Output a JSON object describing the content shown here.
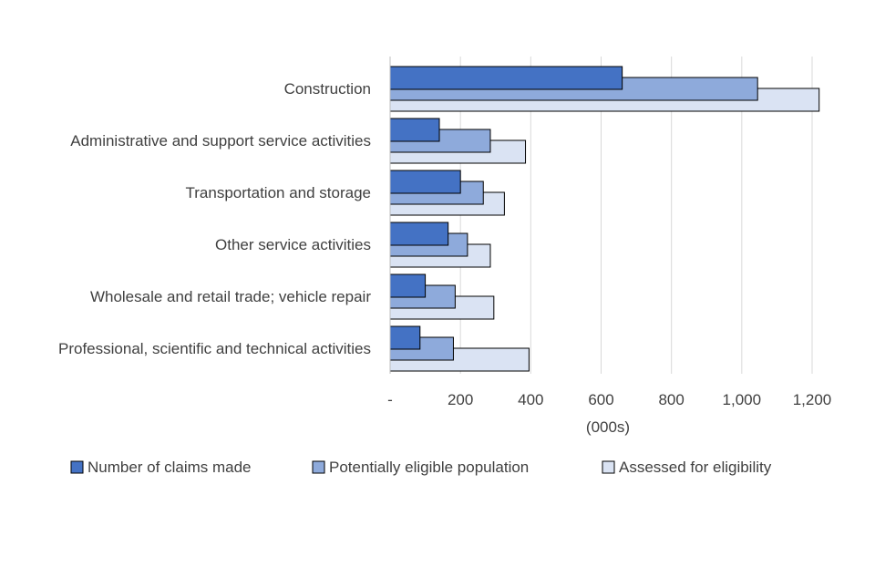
{
  "chart_data": {
    "type": "bar",
    "orientation": "horizontal",
    "categories": [
      "Construction",
      "Administrative and support service activities",
      "Transportation and storage",
      "Other service activities",
      "Wholesale and retail trade; vehicle repair",
      "Professional, scientific and technical activities"
    ],
    "series": [
      {
        "name": "Number of claims made",
        "color": "#4472c4",
        "values": [
          660,
          140,
          200,
          165,
          100,
          85
        ]
      },
      {
        "name": "Potentially eligible population",
        "color": "#8eaadb",
        "values": [
          1045,
          285,
          265,
          220,
          185,
          180
        ]
      },
      {
        "name": "Assessed for eligibility",
        "color": "#dae3f3",
        "values": [
          1220,
          385,
          325,
          285,
          295,
          395
        ]
      }
    ],
    "xlabel": "(000s)",
    "ylabel": "",
    "xlim": [
      0,
      1200
    ],
    "ticks": [
      {
        "value": 0,
        "label": "-"
      },
      {
        "value": 200,
        "label": "200"
      },
      {
        "value": 400,
        "label": "400"
      },
      {
        "value": 600,
        "label": "600"
      },
      {
        "value": 800,
        "label": "800"
      },
      {
        "value": 1000,
        "label": "1,000"
      },
      {
        "value": 1200,
        "label": "1,200"
      }
    ],
    "grid": true,
    "legend_position": "bottom"
  }
}
